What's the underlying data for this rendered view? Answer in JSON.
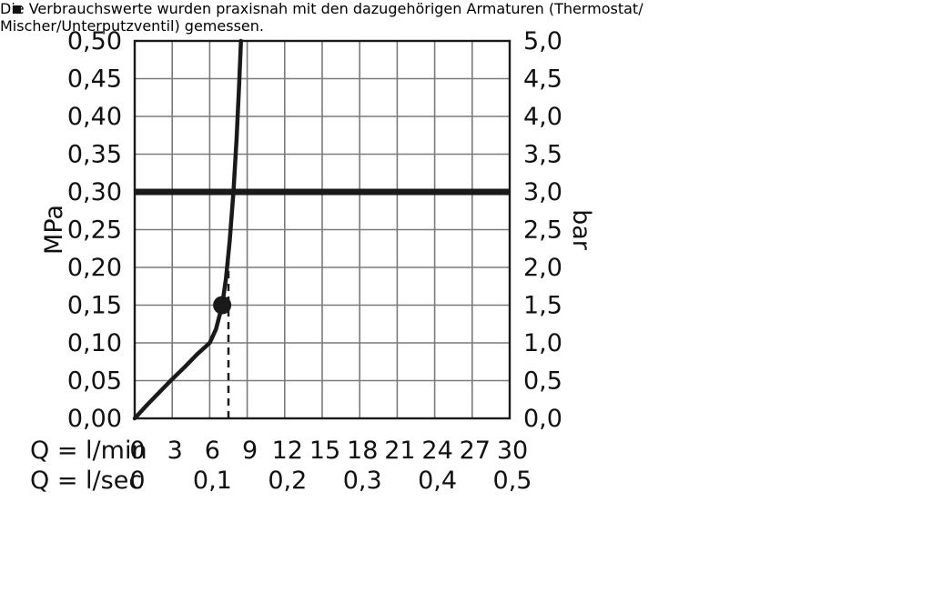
{
  "chart_data": {
    "type": "line",
    "title": "",
    "grid": true,
    "x_axis_lmin": {
      "label": "Q = l/min",
      "min": 0,
      "max": 30,
      "tick_values": [
        0,
        3,
        6,
        9,
        12,
        15,
        18,
        21,
        24,
        27,
        30
      ],
      "tick_labels": [
        "0",
        "3",
        "6",
        "9",
        "12",
        "15",
        "18",
        "21",
        "24",
        "27",
        "30"
      ]
    },
    "x_axis_lsec": {
      "label": "Q = l/sec",
      "tick_values_lmin": [
        0,
        6,
        12,
        18,
        24,
        30
      ],
      "tick_labels": [
        "0",
        "0,1",
        "0,2",
        "0,3",
        "0,4",
        "0,5"
      ]
    },
    "y_axis_left": {
      "label": "MPa",
      "min": 0,
      "max": 0.5,
      "tick_values": [
        0,
        0.05,
        0.1,
        0.15,
        0.2,
        0.25,
        0.3,
        0.35,
        0.4,
        0.45,
        0.5
      ],
      "tick_labels": [
        "0,00",
        "0,05",
        "0,10",
        "0,15",
        "0,20",
        "0,25",
        "0,30",
        "0,35",
        "0,40",
        "0,45",
        "0,50"
      ]
    },
    "y_axis_right": {
      "label": "bar",
      "tick_labels": [
        "0,0",
        "0,5",
        "1,0",
        "1,5",
        "2,0",
        "2,5",
        "3,0",
        "3,5",
        "4,0",
        "4,5",
        "5,0"
      ]
    },
    "series": [
      {
        "name": "flow-pressure-curve",
        "points": [
          [
            0,
            0
          ],
          [
            1,
            0.018
          ],
          [
            2,
            0.035
          ],
          [
            3,
            0.052
          ],
          [
            4,
            0.068
          ],
          [
            5,
            0.085
          ],
          [
            6,
            0.1
          ],
          [
            6.5,
            0.118
          ],
          [
            7,
            0.15
          ],
          [
            7.3,
            0.185
          ],
          [
            7.6,
            0.235
          ],
          [
            7.9,
            0.3
          ],
          [
            8.15,
            0.37
          ],
          [
            8.35,
            0.44
          ],
          [
            8.5,
            0.5
          ]
        ]
      }
    ],
    "reference_line": {
      "y_mpa": 0.3,
      "y_bar": 3.0
    },
    "marker": {
      "x_lmin": 7,
      "y_mpa": 0.15
    },
    "dashed_guide": {
      "x_lmin": 7.5,
      "y_top_mpa": 0.235
    },
    "colors": {
      "curve": "#1a1a1a",
      "grid": "#7a7a7a",
      "frame": "#1a1a1a",
      "reference": "#1a1a1a"
    }
  },
  "caption": {
    "line1": "Die Verbrauchswerte wurden praxisnah mit den dazugehörigen Armaturen (Thermostat/",
    "line2": "Mischer/Unterputzventil) gemessen."
  }
}
